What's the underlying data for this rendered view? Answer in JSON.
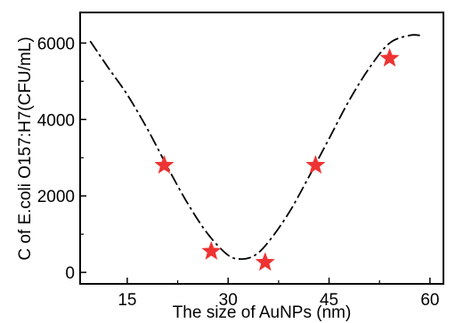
{
  "chart_data": {
    "type": "scatter",
    "title": "",
    "xlabel": "The size of AuNPs (nm)",
    "ylabel": "C of E.coli O157:H7(CFU/mL)",
    "xlim": [
      8,
      62
    ],
    "ylim": [
      -300,
      6800
    ],
    "x_ticks": [
      15,
      30,
      45,
      60
    ],
    "y_ticks": [
      0,
      2000,
      4000,
      6000
    ],
    "grid": false,
    "legend": "none",
    "marker": "star",
    "colors": {
      "marker": "#ee3333",
      "curve": "#000000"
    },
    "series": [
      {
        "values": [
          {
            "x": 20.5,
            "y": 2800
          },
          {
            "x": 27.5,
            "y": 550
          },
          {
            "x": 35.5,
            "y": 260
          },
          {
            "x": 43,
            "y": 2800
          },
          {
            "x": 54,
            "y": 5600
          }
        ]
      }
    ],
    "trend_curve": {
      "style": "dash-dot",
      "x": [
        9.5,
        12,
        15,
        18,
        21,
        24,
        27,
        30,
        32,
        34,
        36,
        39,
        42,
        45,
        48,
        51,
        54,
        57,
        58.5
      ],
      "y": [
        6050,
        5400,
        4650,
        3750,
        2750,
        1800,
        1000,
        450,
        350,
        450,
        800,
        1550,
        2500,
        3500,
        4500,
        5350,
        6000,
        6200,
        6200
      ]
    }
  }
}
